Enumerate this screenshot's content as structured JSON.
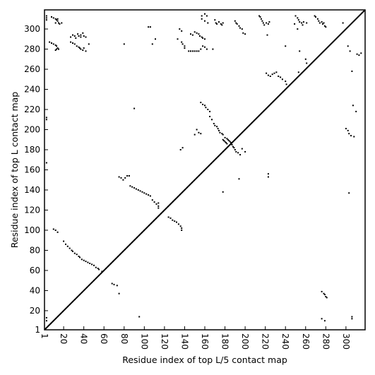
{
  "chart_data": {
    "type": "scatter",
    "title": "",
    "xlabel": "Residue index of top L/5 contact map",
    "ylabel": "Residue index of top L contact map",
    "xlim": [
      1,
      319
    ],
    "ylim": [
      1,
      319
    ],
    "xticks": [
      1,
      20,
      40,
      60,
      80,
      100,
      120,
      140,
      160,
      180,
      200,
      220,
      240,
      260,
      280,
      300
    ],
    "yticks": [
      1,
      20,
      40,
      60,
      80,
      100,
      120,
      140,
      160,
      180,
      200,
      220,
      240,
      260,
      280,
      300
    ],
    "diagonal": true,
    "grid": false,
    "marker_color": "#000000",
    "series": [
      {
        "values": [
          [
            3,
            313
          ],
          [
            3,
            311
          ],
          [
            3,
            309
          ],
          [
            8,
            312
          ],
          [
            10,
            311
          ],
          [
            12,
            310
          ],
          [
            13,
            309
          ],
          [
            14,
            310
          ],
          [
            14,
            308
          ],
          [
            12,
            306
          ],
          [
            15,
            306
          ],
          [
            16,
            305
          ],
          [
            18,
            306
          ],
          [
            6,
            287
          ],
          [
            8,
            286
          ],
          [
            10,
            285
          ],
          [
            12,
            284
          ],
          [
            13,
            283
          ],
          [
            14,
            281
          ],
          [
            15,
            280
          ],
          [
            13,
            280
          ],
          [
            12,
            279
          ],
          [
            27,
            292
          ],
          [
            29,
            294
          ],
          [
            31,
            293
          ],
          [
            32,
            291
          ],
          [
            34,
            295
          ],
          [
            35,
            293
          ],
          [
            37,
            292
          ],
          [
            37,
            294
          ],
          [
            39,
            296
          ],
          [
            40,
            293
          ],
          [
            42,
            292
          ],
          [
            27,
            287
          ],
          [
            29,
            286
          ],
          [
            31,
            285
          ],
          [
            33,
            283
          ],
          [
            35,
            282
          ],
          [
            36,
            281
          ],
          [
            37,
            280
          ],
          [
            39,
            279
          ],
          [
            40,
            281
          ],
          [
            42,
            278
          ],
          [
            45,
            285
          ],
          [
            3,
            212
          ],
          [
            3,
            210
          ],
          [
            3,
            167
          ],
          [
            3,
            13
          ],
          [
            3,
            10
          ],
          [
            104,
            302
          ],
          [
            106,
            302
          ],
          [
            108,
            285
          ],
          [
            111,
            290
          ],
          [
            80,
            285
          ],
          [
            90,
            221
          ],
          [
            95,
            14
          ],
          [
            133,
            290
          ],
          [
            135,
            300
          ],
          [
            137,
            298
          ],
          [
            137,
            287
          ],
          [
            138,
            285
          ],
          [
            140,
            283
          ],
          [
            140,
            281
          ],
          [
            144,
            278
          ],
          [
            146,
            278
          ],
          [
            148,
            278
          ],
          [
            150,
            278
          ],
          [
            152,
            278
          ],
          [
            154,
            278
          ],
          [
            156,
            280
          ],
          [
            158,
            283
          ],
          [
            160,
            282
          ],
          [
            162,
            280
          ],
          [
            146,
            295
          ],
          [
            148,
            294
          ],
          [
            150,
            297
          ],
          [
            152,
            296
          ],
          [
            154,
            295
          ],
          [
            155,
            293
          ],
          [
            157,
            292
          ],
          [
            158,
            291
          ],
          [
            160,
            290
          ],
          [
            157,
            310
          ],
          [
            157,
            313
          ],
          [
            160,
            315
          ],
          [
            162,
            313
          ],
          [
            160,
            308
          ],
          [
            163,
            306
          ],
          [
            168,
            280
          ],
          [
            170,
            309
          ],
          [
            171,
            306
          ],
          [
            172,
            305
          ],
          [
            174,
            307
          ],
          [
            176,
            305
          ],
          [
            177,
            304
          ],
          [
            178,
            306
          ],
          [
            190,
            308
          ],
          [
            191,
            306
          ],
          [
            192,
            305
          ],
          [
            194,
            303
          ],
          [
            195,
            301
          ],
          [
            197,
            300
          ],
          [
            198,
            296
          ],
          [
            200,
            295
          ],
          [
            214,
            313
          ],
          [
            215,
            312
          ],
          [
            216,
            310
          ],
          [
            217,
            308
          ],
          [
            218,
            306
          ],
          [
            219,
            304
          ],
          [
            221,
            306
          ],
          [
            223,
            305
          ],
          [
            224,
            307
          ],
          [
            250,
            313
          ],
          [
            252,
            311
          ],
          [
            253,
            309
          ],
          [
            254,
            307
          ],
          [
            256,
            306
          ],
          [
            257,
            304
          ],
          [
            258,
            307
          ],
          [
            261,
            306
          ],
          [
            269,
            313
          ],
          [
            270,
            312
          ],
          [
            272,
            310
          ],
          [
            273,
            308
          ],
          [
            274,
            306
          ],
          [
            276,
            307
          ],
          [
            277,
            305
          ],
          [
            278,
            306
          ],
          [
            279,
            303
          ],
          [
            280,
            302
          ],
          [
            249,
            305
          ],
          [
            252,
            300
          ],
          [
            254,
            278
          ],
          [
            260,
            270
          ],
          [
            261,
            266
          ],
          [
            253,
            257
          ],
          [
            240,
            283
          ],
          [
            222,
            294
          ],
          [
            221,
            256
          ],
          [
            223,
            254
          ],
          [
            225,
            253
          ],
          [
            227,
            255
          ],
          [
            229,
            256
          ],
          [
            231,
            257
          ],
          [
            233,
            253
          ],
          [
            235,
            252
          ],
          [
            237,
            250
          ],
          [
            240,
            248
          ],
          [
            241,
            245
          ],
          [
            136,
            180
          ],
          [
            138,
            182
          ],
          [
            150,
            195
          ],
          [
            152,
            200
          ],
          [
            154,
            197
          ],
          [
            156,
            196
          ],
          [
            156,
            227
          ],
          [
            158,
            225
          ],
          [
            160,
            224
          ],
          [
            161,
            222
          ],
          [
            163,
            220
          ],
          [
            165,
            218
          ],
          [
            165,
            213
          ],
          [
            167,
            210
          ],
          [
            169,
            206
          ],
          [
            170,
            204
          ],
          [
            172,
            203
          ],
          [
            173,
            201
          ],
          [
            174,
            199
          ],
          [
            175,
            197
          ],
          [
            177,
            196
          ],
          [
            178,
            195
          ],
          [
            178,
            190
          ],
          [
            179,
            189
          ],
          [
            180,
            188
          ],
          [
            181,
            187
          ],
          [
            182,
            186
          ],
          [
            180,
            192
          ],
          [
            182,
            191
          ],
          [
            183,
            190
          ],
          [
            184,
            189
          ],
          [
            185,
            188
          ],
          [
            186,
            187
          ],
          [
            187,
            185
          ],
          [
            188,
            183
          ],
          [
            189,
            182
          ],
          [
            190,
            180
          ],
          [
            191,
            178
          ],
          [
            193,
            177
          ],
          [
            195,
            175
          ],
          [
            197,
            181
          ],
          [
            200,
            178
          ],
          [
            178,
            138
          ],
          [
            194,
            151
          ],
          [
            223,
            153
          ],
          [
            223,
            156
          ],
          [
            75,
            153
          ],
          [
            77,
            152
          ],
          [
            79,
            150
          ],
          [
            81,
            152
          ],
          [
            83,
            154
          ],
          [
            85,
            154
          ],
          [
            86,
            144
          ],
          [
            88,
            143
          ],
          [
            90,
            142
          ],
          [
            92,
            141
          ],
          [
            94,
            140
          ],
          [
            96,
            139
          ],
          [
            98,
            138
          ],
          [
            100,
            137
          ],
          [
            102,
            136
          ],
          [
            104,
            135
          ],
          [
            106,
            134
          ],
          [
            108,
            130
          ],
          [
            110,
            128
          ],
          [
            112,
            126
          ],
          [
            114,
            124
          ],
          [
            114,
            122
          ],
          [
            114,
            127
          ],
          [
            124,
            113
          ],
          [
            126,
            112
          ],
          [
            128,
            110
          ],
          [
            130,
            109
          ],
          [
            132,
            108
          ],
          [
            134,
            106
          ],
          [
            136,
            104
          ],
          [
            137,
            102
          ],
          [
            137,
            100
          ],
          [
            10,
            101
          ],
          [
            12,
            100
          ],
          [
            14,
            98
          ],
          [
            20,
            89
          ],
          [
            22,
            86
          ],
          [
            24,
            84
          ],
          [
            26,
            82
          ],
          [
            28,
            80
          ],
          [
            29,
            79
          ],
          [
            31,
            77
          ],
          [
            33,
            76
          ],
          [
            35,
            74
          ],
          [
            36,
            73
          ],
          [
            38,
            71
          ],
          [
            40,
            70
          ],
          [
            42,
            69
          ],
          [
            44,
            68
          ],
          [
            46,
            67
          ],
          [
            48,
            66
          ],
          [
            50,
            65
          ],
          [
            52,
            63
          ],
          [
            54,
            62
          ],
          [
            55,
            61
          ],
          [
            58,
            59
          ],
          [
            68,
            47
          ],
          [
            70,
            46
          ],
          [
            73,
            45
          ],
          [
            75,
            37
          ],
          [
            276,
            39
          ],
          [
            278,
            37
          ],
          [
            279,
            36
          ],
          [
            280,
            34
          ],
          [
            281,
            33
          ],
          [
            276,
            12
          ],
          [
            279,
            10
          ],
          [
            300,
            201
          ],
          [
            302,
            199
          ],
          [
            303,
            196
          ],
          [
            305,
            194
          ],
          [
            308,
            193
          ],
          [
            302,
            283
          ],
          [
            304,
            278
          ],
          [
            306,
            258
          ],
          [
            307,
            224
          ],
          [
            310,
            218
          ],
          [
            311,
            275
          ],
          [
            313,
            274
          ],
          [
            315,
            276
          ],
          [
            303,
            137
          ],
          [
            306,
            14
          ],
          [
            306,
            12
          ],
          [
            297,
            306
          ]
        ]
      }
    ]
  }
}
